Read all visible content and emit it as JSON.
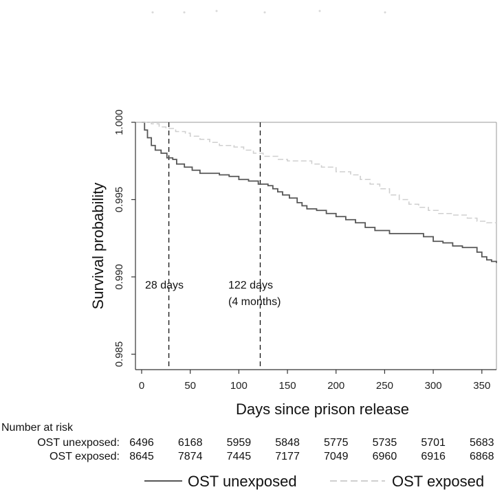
{
  "chart_data": {
    "type": "line",
    "title": "",
    "xlabel": "Days since prison release",
    "ylabel": "Survival probability",
    "xlim": [
      0,
      365
    ],
    "ylim": [
      0.984,
      1.0
    ],
    "x_ticks": [
      0,
      50,
      100,
      150,
      200,
      250,
      300,
      350
    ],
    "y_ticks": [
      "1.000",
      "0.995",
      "0.990",
      "0.985"
    ],
    "y_tick_values": [
      1.0,
      0.995,
      0.99,
      0.985
    ],
    "grid": false,
    "legend_position": "bottom",
    "annotations": [
      {
        "day": 28,
        "line1": "28 days",
        "line2": ""
      },
      {
        "day": 122,
        "line1": "122 days",
        "line2": "(4 months)"
      }
    ],
    "series": [
      {
        "name": "OST unexposed",
        "style": "solid",
        "color": "#555555",
        "points": [
          [
            0,
            1.0
          ],
          [
            3,
            0.9995
          ],
          [
            6,
            0.999
          ],
          [
            10,
            0.9985
          ],
          [
            14,
            0.9982
          ],
          [
            20,
            0.998
          ],
          [
            26,
            0.9977
          ],
          [
            32,
            0.9976
          ],
          [
            36,
            0.9973
          ],
          [
            44,
            0.9971
          ],
          [
            52,
            0.9969
          ],
          [
            60,
            0.9967
          ],
          [
            75,
            0.9967
          ],
          [
            80,
            0.9966
          ],
          [
            90,
            0.9965
          ],
          [
            100,
            0.9963
          ],
          [
            110,
            0.9962
          ],
          [
            120,
            0.996
          ],
          [
            130,
            0.9959
          ],
          [
            135,
            0.9957
          ],
          [
            140,
            0.9955
          ],
          [
            145,
            0.9953
          ],
          [
            152,
            0.9951
          ],
          [
            160,
            0.9948
          ],
          [
            165,
            0.9946
          ],
          [
            170,
            0.9944
          ],
          [
            180,
            0.9943
          ],
          [
            190,
            0.9941
          ],
          [
            200,
            0.9939
          ],
          [
            210,
            0.9937
          ],
          [
            220,
            0.9935
          ],
          [
            230,
            0.9932
          ],
          [
            240,
            0.993
          ],
          [
            250,
            0.993
          ],
          [
            255,
            0.9928
          ],
          [
            275,
            0.9928
          ],
          [
            290,
            0.9926
          ],
          [
            300,
            0.9923
          ],
          [
            310,
            0.9922
          ],
          [
            320,
            0.992
          ],
          [
            330,
            0.9919
          ],
          [
            345,
            0.9916
          ],
          [
            350,
            0.9913
          ],
          [
            355,
            0.9911
          ],
          [
            360,
            0.991
          ],
          [
            365,
            0.9909
          ]
        ]
      },
      {
        "name": "OST exposed",
        "style": "dashed",
        "color": "#cfcfcf",
        "points": [
          [
            0,
            1.0
          ],
          [
            10,
            0.9999
          ],
          [
            18,
            0.9997
          ],
          [
            25,
            0.9996
          ],
          [
            35,
            0.9994
          ],
          [
            45,
            0.9993
          ],
          [
            50,
            0.9991
          ],
          [
            60,
            0.9989
          ],
          [
            70,
            0.9987
          ],
          [
            80,
            0.9985
          ],
          [
            95,
            0.9984
          ],
          [
            105,
            0.9982
          ],
          [
            115,
            0.998
          ],
          [
            125,
            0.9978
          ],
          [
            140,
            0.9976
          ],
          [
            150,
            0.9975
          ],
          [
            165,
            0.9975
          ],
          [
            175,
            0.9973
          ],
          [
            185,
            0.9971
          ],
          [
            200,
            0.9968
          ],
          [
            215,
            0.9966
          ],
          [
            225,
            0.9963
          ],
          [
            235,
            0.996
          ],
          [
            245,
            0.9957
          ],
          [
            255,
            0.9953
          ],
          [
            265,
            0.995
          ],
          [
            275,
            0.9947
          ],
          [
            285,
            0.9945
          ],
          [
            295,
            0.9943
          ],
          [
            305,
            0.9941
          ],
          [
            320,
            0.994
          ],
          [
            335,
            0.9938
          ],
          [
            345,
            0.9936
          ],
          [
            355,
            0.9935
          ],
          [
            365,
            0.9935
          ]
        ]
      }
    ]
  },
  "risk_table": {
    "title": "Number at risk",
    "rows": [
      {
        "label": "OST unexposed:",
        "values": [
          "6496",
          "6168",
          "5959",
          "5848",
          "5775",
          "5735",
          "5701",
          "5683"
        ]
      },
      {
        "label": "OST exposed:",
        "values": [
          "8645",
          "7874",
          "7445",
          "7177",
          "7049",
          "6960",
          "6916",
          "6868"
        ]
      }
    ]
  },
  "legend": {
    "items": [
      {
        "label": "OST unexposed",
        "style": "solid",
        "color": "#555555"
      },
      {
        "label": "OST exposed",
        "style": "dashed",
        "color": "#cfcfcf"
      }
    ]
  },
  "colors": {
    "axis": "#333333",
    "vline": "#111111"
  }
}
